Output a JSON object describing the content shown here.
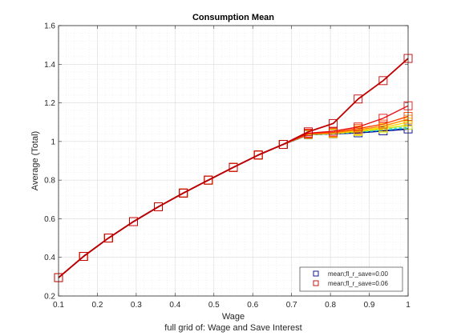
{
  "chart_data": {
    "type": "line",
    "title": "Consumption Mean",
    "xlabel": "Wage",
    "xlabel_sub": "full grid of: Wage and Save Interest",
    "ylabel": "Average (Total)",
    "xlim": [
      0.1,
      1.0
    ],
    "ylim": [
      0.2,
      1.6
    ],
    "xticks": [
      0.1,
      0.2,
      0.3,
      0.4,
      0.5,
      0.6,
      0.7,
      0.8,
      0.9,
      1.0
    ],
    "xtick_labels": [
      "0.1",
      "0.2",
      "0.3",
      "0.4",
      "0.5",
      "0.6",
      "0.7",
      "0.8",
      "0.9",
      "1"
    ],
    "yticks": [
      0.2,
      0.4,
      0.6,
      0.8,
      1.0,
      1.2,
      1.4,
      1.6
    ],
    "ytick_labels": [
      "0.2",
      "0.4",
      "0.6",
      "0.8",
      "1",
      "1.2",
      "1.4",
      "1.6"
    ],
    "grid": true,
    "minor_grid": true,
    "legend_position": "bottom-right",
    "x": [
      0.1,
      0.1643,
      0.2286,
      0.2929,
      0.3571,
      0.4214,
      0.4857,
      0.55,
      0.6143,
      0.6786,
      0.7429,
      0.8071,
      0.8714,
      0.9357,
      1.0
    ],
    "series": [
      {
        "name": "mean;fl_r_save=0.00",
        "color": "#00008B",
        "marker": "square",
        "legend": true,
        "values": [
          0.295,
          0.405,
          0.5,
          0.585,
          0.662,
          0.733,
          0.8,
          0.866,
          0.93,
          0.985,
          1.035,
          1.04,
          1.045,
          1.055,
          1.065
        ]
      },
      {
        "name": "",
        "color": "#00C8FF",
        "marker": "none",
        "legend": false,
        "values": [
          0.295,
          0.405,
          0.5,
          0.585,
          0.662,
          0.733,
          0.8,
          0.866,
          0.93,
          0.985,
          1.035,
          1.04,
          1.048,
          1.058,
          1.07
        ]
      },
      {
        "name": "",
        "color": "#40E0A0",
        "marker": "none",
        "legend": false,
        "values": [
          0.295,
          0.405,
          0.5,
          0.585,
          0.662,
          0.733,
          0.8,
          0.866,
          0.93,
          0.985,
          1.035,
          1.04,
          1.05,
          1.062,
          1.075
        ]
      },
      {
        "name": "",
        "color": "#C8E600",
        "marker": "square",
        "legend": false,
        "values": [
          0.295,
          0.405,
          0.5,
          0.585,
          0.662,
          0.733,
          0.8,
          0.866,
          0.93,
          0.985,
          1.036,
          1.041,
          1.052,
          1.066,
          1.085
        ]
      },
      {
        "name": "",
        "color": "#FFD700",
        "marker": "square",
        "legend": false,
        "values": [
          0.295,
          0.405,
          0.5,
          0.585,
          0.662,
          0.733,
          0.8,
          0.866,
          0.93,
          0.985,
          1.037,
          1.042,
          1.055,
          1.072,
          1.1
        ]
      },
      {
        "name": "",
        "color": "#FF8C00",
        "marker": "square",
        "legend": false,
        "values": [
          0.295,
          0.405,
          0.5,
          0.585,
          0.662,
          0.733,
          0.8,
          0.866,
          0.93,
          0.985,
          1.038,
          1.044,
          1.06,
          1.08,
          1.115
        ]
      },
      {
        "name": "",
        "color": "#FF4500",
        "marker": "square",
        "legend": false,
        "values": [
          0.295,
          0.405,
          0.5,
          0.585,
          0.662,
          0.733,
          0.8,
          0.866,
          0.93,
          0.985,
          1.04,
          1.047,
          1.067,
          1.09,
          1.13
        ]
      },
      {
        "name": "",
        "color": "#E81010",
        "marker": "square",
        "legend": false,
        "values": [
          0.295,
          0.405,
          0.5,
          0.585,
          0.662,
          0.733,
          0.8,
          0.866,
          0.93,
          0.985,
          1.043,
          1.053,
          1.075,
          1.12,
          1.185
        ]
      },
      {
        "name": "mean;fl_r_save=0.06",
        "color": "#C00000",
        "marker": "square",
        "legend": true,
        "values": [
          0.295,
          0.405,
          0.5,
          0.585,
          0.662,
          0.733,
          0.8,
          0.866,
          0.93,
          0.985,
          1.05,
          1.093,
          1.22,
          1.315,
          1.43
        ]
      }
    ]
  }
}
